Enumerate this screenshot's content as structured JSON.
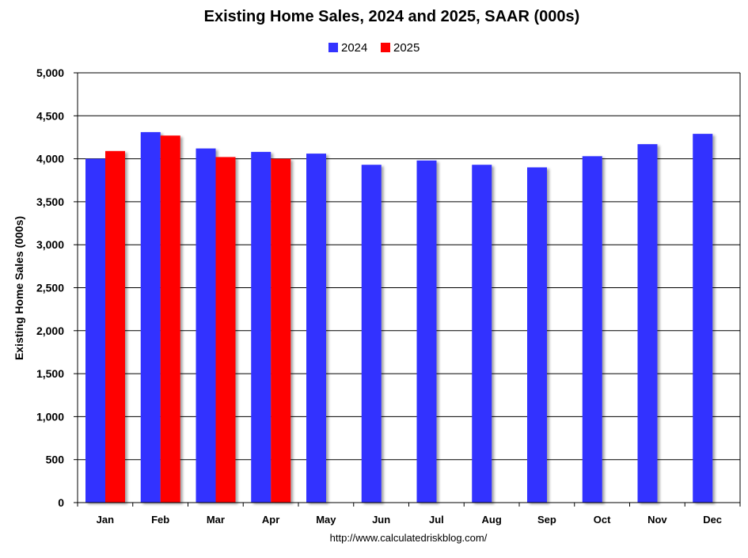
{
  "chart_data": {
    "type": "bar",
    "title": "Existing Home Sales,  2024 and 2025, SAAR (000s)",
    "xlabel": "",
    "ylabel": "Existing Home Sales (000s)",
    "categories": [
      "Jan",
      "Feb",
      "Mar",
      "Apr",
      "May",
      "Jun",
      "Jul",
      "Aug",
      "Sep",
      "Oct",
      "Nov",
      "Dec"
    ],
    "series": [
      {
        "name": "2024",
        "color": "#3333ff",
        "values": [
          4000,
          4310,
          4120,
          4080,
          4060,
          3930,
          3980,
          3930,
          3900,
          4030,
          4170,
          4290
        ]
      },
      {
        "name": "2025",
        "color": "#ff0000",
        "values": [
          4090,
          4270,
          4020,
          4000,
          null,
          null,
          null,
          null,
          null,
          null,
          null,
          null
        ]
      }
    ],
    "ylim": [
      0,
      5000
    ],
    "yticks": [
      0,
      500,
      1000,
      1500,
      2000,
      2500,
      3000,
      3500,
      4000,
      4500,
      5000
    ],
    "ytick_labels": [
      "0",
      "500",
      "1,000",
      "1,500",
      "2,000",
      "2,500",
      "3,000",
      "3,500",
      "4,000",
      "4,500",
      "5,000"
    ],
    "grid": true,
    "legend_position": "top-center",
    "source": "http://www.calculatedriskblog.com/"
  }
}
